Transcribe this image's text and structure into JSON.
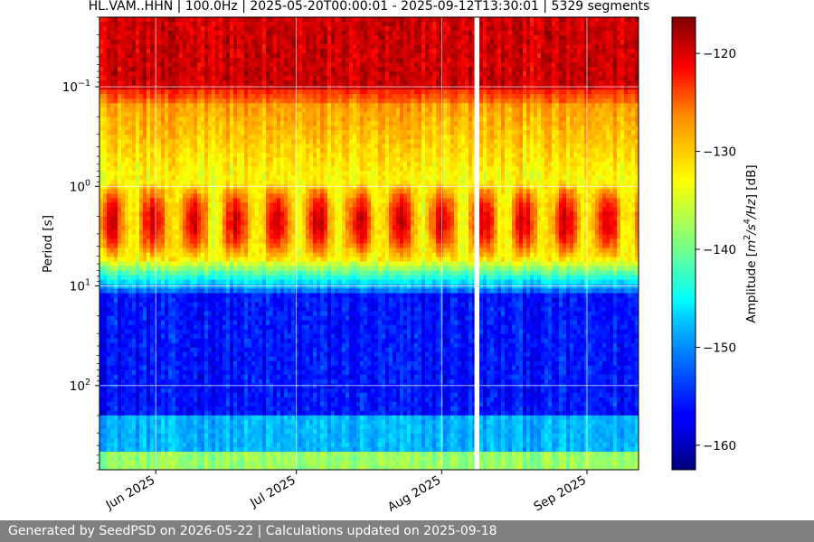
{
  "footer": {
    "text": "Generated by SeedPSD on 2026-05-22 | Calculations updated on 2025-09-18"
  },
  "chart_data": {
    "type": "heatmap",
    "title": "HL.VAM..HHN | 100.0Hz | 2025-05-20T00:00:01 - 2025-09-12T13:30:01 | 5329 segments",
    "ylabel": "Period [s]",
    "yscale": "log",
    "yaxis_inverted": true,
    "ylim": [
      0.02,
      700
    ],
    "xlim": [
      "2025-05-20",
      "2025-09-12"
    ],
    "grid": true,
    "x_ticks": [
      {
        "date": "2025-06-01",
        "label": "Jun 2025"
      },
      {
        "date": "2025-07-01",
        "label": "Jul 2025"
      },
      {
        "date": "2025-08-01",
        "label": "Aug 2025"
      },
      {
        "date": "2025-09-01",
        "label": "Sep 2025"
      }
    ],
    "y_ticks": [
      {
        "value": 0.1,
        "base": "10",
        "exp": "−1"
      },
      {
        "value": 1,
        "base": "10",
        "exp": "0"
      },
      {
        "value": 10,
        "base": "10",
        "exp": "1"
      },
      {
        "value": 100,
        "base": "10",
        "exp": "2"
      }
    ],
    "colorbar": {
      "label_parts": [
        "Amplitude [",
        "m",
        "2",
        "/",
        "s",
        "4",
        "/",
        "Hz",
        "] [dB]"
      ],
      "range": [
        -162.5,
        -116.3
      ],
      "ticks": [
        {
          "value": -120,
          "label": "−120"
        },
        {
          "value": -130,
          "label": "−130"
        },
        {
          "value": -140,
          "label": "−140"
        },
        {
          "value": -150,
          "label": "−150"
        },
        {
          "value": -160,
          "label": "−160"
        }
      ],
      "colormap": "jet"
    },
    "data_gap": {
      "start": "2025-08-08",
      "end": "2025-08-09"
    }
  }
}
